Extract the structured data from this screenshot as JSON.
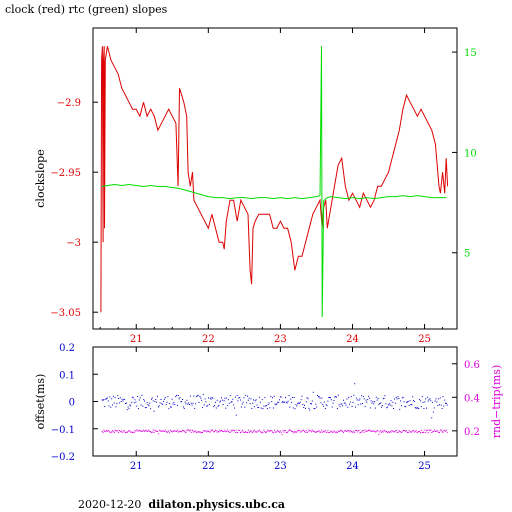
{
  "title": "clock (red) rtc (green) slopes",
  "footer": {
    "date": "2020-12-20",
    "host": "dilaton.physics.ubc.ca"
  },
  "colors": {
    "red": "#dd0000",
    "green": "#00dd00",
    "blue": "#0000cc",
    "magenta": "#dd00dd",
    "axis": "#000000"
  },
  "chart_data": [
    {
      "type": "line",
      "ylabel": "clockslope",
      "y2label": "",
      "xlim": [
        20.4,
        25.45
      ],
      "ylim": [
        -3.062,
        -2.847
      ],
      "y2lim": [
        1.2,
        16.2
      ],
      "xticks": [
        "21",
        "22",
        "23",
        "24",
        "25"
      ],
      "yticks": [
        "-2.9",
        "-2.95",
        "-3",
        "-3.05"
      ],
      "y2ticks": [
        "5",
        "10",
        "15"
      ],
      "series": [
        {
          "color": "red",
          "axis": "left",
          "points": [
            [
              20.51,
              -3.05
            ],
            [
              20.52,
              -2.87
            ],
            [
              20.53,
              -2.86
            ],
            [
              20.54,
              -3.0
            ],
            [
              20.545,
              -2.87
            ],
            [
              20.555,
              -2.86
            ],
            [
              20.56,
              -2.99
            ],
            [
              20.57,
              -2.87
            ],
            [
              20.6,
              -2.86
            ],
            [
              20.65,
              -2.87
            ],
            [
              20.7,
              -2.875
            ],
            [
              20.75,
              -2.88
            ],
            [
              20.8,
              -2.89
            ],
            [
              20.85,
              -2.895
            ],
            [
              20.9,
              -2.9
            ],
            [
              20.95,
              -2.905
            ],
            [
              21.0,
              -2.905
            ],
            [
              21.05,
              -2.91
            ],
            [
              21.1,
              -2.9
            ],
            [
              21.15,
              -2.91
            ],
            [
              21.2,
              -2.905
            ],
            [
              21.25,
              -2.91
            ],
            [
              21.3,
              -2.92
            ],
            [
              21.35,
              -2.915
            ],
            [
              21.4,
              -2.91
            ],
            [
              21.45,
              -2.905
            ],
            [
              21.5,
              -2.91
            ],
            [
              21.55,
              -2.915
            ],
            [
              21.58,
              -2.96
            ],
            [
              21.6,
              -2.89
            ],
            [
              21.63,
              -2.895
            ],
            [
              21.66,
              -2.9
            ],
            [
              21.7,
              -2.91
            ],
            [
              21.72,
              -2.95
            ],
            [
              21.75,
              -2.96
            ],
            [
              21.78,
              -2.95
            ],
            [
              21.8,
              -2.97
            ],
            [
              21.85,
              -2.975
            ],
            [
              21.9,
              -2.98
            ],
            [
              21.95,
              -2.985
            ],
            [
              22.0,
              -2.99
            ],
            [
              22.05,
              -2.98
            ],
            [
              22.1,
              -2.99
            ],
            [
              22.15,
              -3.0
            ],
            [
              22.2,
              -3.0
            ],
            [
              22.22,
              -3.005
            ],
            [
              22.25,
              -2.985
            ],
            [
              22.3,
              -2.97
            ],
            [
              22.35,
              -2.97
            ],
            [
              22.4,
              -2.985
            ],
            [
              22.45,
              -2.97
            ],
            [
              22.5,
              -2.975
            ],
            [
              22.55,
              -2.98
            ],
            [
              22.58,
              -3.02
            ],
            [
              22.6,
              -3.03
            ],
            [
              22.62,
              -2.99
            ],
            [
              22.65,
              -2.985
            ],
            [
              22.7,
              -2.98
            ],
            [
              22.75,
              -2.98
            ],
            [
              22.8,
              -2.98
            ],
            [
              22.85,
              -2.98
            ],
            [
              22.9,
              -2.99
            ],
            [
              22.95,
              -2.99
            ],
            [
              23.0,
              -2.985
            ],
            [
              23.05,
              -2.99
            ],
            [
              23.1,
              -2.99
            ],
            [
              23.15,
              -3.0
            ],
            [
              23.2,
              -3.02
            ],
            [
              23.25,
              -3.01
            ],
            [
              23.3,
              -3.01
            ],
            [
              23.35,
              -3.0
            ],
            [
              23.4,
              -2.99
            ],
            [
              23.45,
              -2.98
            ],
            [
              23.5,
              -2.975
            ],
            [
              23.55,
              -2.97
            ],
            [
              23.58,
              -2.99
            ],
            [
              23.6,
              -2.975
            ],
            [
              23.63,
              -2.97
            ],
            [
              23.65,
              -2.99
            ],
            [
              23.7,
              -2.975
            ],
            [
              23.75,
              -2.96
            ],
            [
              23.8,
              -2.945
            ],
            [
              23.85,
              -2.94
            ],
            [
              23.9,
              -2.96
            ],
            [
              23.95,
              -2.97
            ],
            [
              24.0,
              -2.965
            ],
            [
              24.05,
              -2.97
            ],
            [
              24.1,
              -2.975
            ],
            [
              24.15,
              -2.965
            ],
            [
              24.2,
              -2.97
            ],
            [
              24.25,
              -2.975
            ],
            [
              24.3,
              -2.97
            ],
            [
              24.35,
              -2.96
            ],
            [
              24.4,
              -2.96
            ],
            [
              24.45,
              -2.955
            ],
            [
              24.5,
              -2.95
            ],
            [
              24.55,
              -2.94
            ],
            [
              24.6,
              -2.93
            ],
            [
              24.65,
              -2.92
            ],
            [
              24.7,
              -2.905
            ],
            [
              24.75,
              -2.895
            ],
            [
              24.8,
              -2.9
            ],
            [
              24.85,
              -2.905
            ],
            [
              24.9,
              -2.91
            ],
            [
              24.95,
              -2.905
            ],
            [
              25.0,
              -2.91
            ],
            [
              25.05,
              -2.915
            ],
            [
              25.1,
              -2.92
            ],
            [
              25.15,
              -2.93
            ],
            [
              25.2,
              -2.96
            ],
            [
              25.22,
              -2.965
            ],
            [
              25.25,
              -2.95
            ],
            [
              25.28,
              -2.965
            ],
            [
              25.3,
              -2.94
            ],
            [
              25.32,
              -2.96
            ]
          ]
        },
        {
          "color": "green",
          "axis": "right",
          "points": [
            [
              20.52,
              8.3
            ],
            [
              20.6,
              8.35
            ],
            [
              20.7,
              8.4
            ],
            [
              20.8,
              8.35
            ],
            [
              20.9,
              8.4
            ],
            [
              21.0,
              8.35
            ],
            [
              21.1,
              8.3
            ],
            [
              21.2,
              8.35
            ],
            [
              21.3,
              8.3
            ],
            [
              21.4,
              8.3
            ],
            [
              21.5,
              8.25
            ],
            [
              21.6,
              8.2
            ],
            [
              21.7,
              8.1
            ],
            [
              21.8,
              8.0
            ],
            [
              21.9,
              7.9
            ],
            [
              22.0,
              7.8
            ],
            [
              22.1,
              7.75
            ],
            [
              22.2,
              7.75
            ],
            [
              22.3,
              7.7
            ],
            [
              22.4,
              7.75
            ],
            [
              22.5,
              7.75
            ],
            [
              22.6,
              7.7
            ],
            [
              22.7,
              7.75
            ],
            [
              22.8,
              7.75
            ],
            [
              22.9,
              7.7
            ],
            [
              23.0,
              7.75
            ],
            [
              23.1,
              7.7
            ],
            [
              23.2,
              7.75
            ],
            [
              23.3,
              7.7
            ],
            [
              23.4,
              7.75
            ],
            [
              23.5,
              7.8
            ],
            [
              23.55,
              7.85
            ],
            [
              23.57,
              15.3
            ],
            [
              23.58,
              1.8
            ],
            [
              23.6,
              7.6
            ],
            [
              23.65,
              7.75
            ],
            [
              23.7,
              7.8
            ],
            [
              23.8,
              7.75
            ],
            [
              23.9,
              7.7
            ],
            [
              24.0,
              7.75
            ],
            [
              24.1,
              7.7
            ],
            [
              24.2,
              7.75
            ],
            [
              24.3,
              7.7
            ],
            [
              24.4,
              7.75
            ],
            [
              24.5,
              7.8
            ],
            [
              24.6,
              7.8
            ],
            [
              24.7,
              7.85
            ],
            [
              24.8,
              7.8
            ],
            [
              24.9,
              7.85
            ],
            [
              25.0,
              7.8
            ],
            [
              25.1,
              7.75
            ],
            [
              25.2,
              7.75
            ],
            [
              25.3,
              7.75
            ]
          ]
        }
      ]
    },
    {
      "type": "scatter",
      "ylabel": "offset(ms)",
      "y2label": "rnd−trip(ms)",
      "xlim": [
        20.4,
        25.45
      ],
      "ylim": [
        -0.2,
        0.2
      ],
      "y2lim": [
        0.05,
        0.7
      ],
      "xticks": [
        "21",
        "22",
        "23",
        "24",
        "25"
      ],
      "yticks": [
        "0.2",
        "0.1",
        "0",
        "-0.1",
        "-0.2"
      ],
      "y2ticks": [
        "0.6",
        "0.4",
        "0.2"
      ],
      "series": [
        {
          "color": "blue",
          "axis": "left",
          "center": 0.0,
          "spread": 0.025
        },
        {
          "color": "magenta",
          "axis": "right",
          "center": 0.2,
          "spread": 0.008
        }
      ]
    }
  ]
}
